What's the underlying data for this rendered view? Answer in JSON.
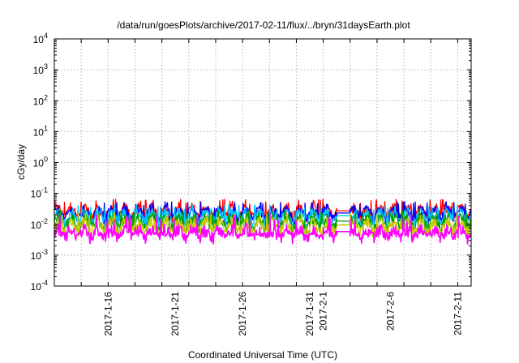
{
  "chart_data": {
    "type": "line",
    "title": "/data/run/goesPlots/archive/2017-02-11/flux/../bryn/31daysEarth.plot",
    "xlabel": "Coordinated Universal Time (UTC)",
    "ylabel": "cGy/day",
    "yscale": "log",
    "ylim": [
      0.0001,
      10000
    ],
    "y_ticks": [
      {
        "base": "10",
        "exp": "-4"
      },
      {
        "base": "10",
        "exp": "-3"
      },
      {
        "base": "10",
        "exp": "-2"
      },
      {
        "base": "10",
        "exp": "-1"
      },
      {
        "base": "10",
        "exp": "0"
      },
      {
        "base": "10",
        "exp": "1"
      },
      {
        "base": "10",
        "exp": "2"
      },
      {
        "base": "10",
        "exp": "3"
      },
      {
        "base": "10",
        "exp": "4"
      }
    ],
    "xlim": [
      "2017-01-12",
      "2017-02-12"
    ],
    "x_ticks": [
      "2017-1-16",
      "2017-1-21",
      "2017-1-26",
      "2017-1-31",
      "2017-2-1",
      "2017-2-6",
      "2017-2-11"
    ],
    "grid": true,
    "legend": "none",
    "series": [
      {
        "color": "#ff0000",
        "baseline": 0.026,
        "spike": 0.065
      },
      {
        "color": "#0000ff",
        "baseline": 0.022,
        "spike": 0.055
      },
      {
        "color": "#00c8ff",
        "baseline": 0.018,
        "spike": 0.045
      },
      {
        "color": "#00a000",
        "baseline": 0.012,
        "spike": 0.03
      },
      {
        "color": "#c8c800",
        "baseline": 0.009,
        "spike": 0.024
      },
      {
        "color": "#ff00ff",
        "baseline": 0.0055,
        "spike": 0.02
      }
    ],
    "data_gap": [
      "2017-02-02",
      "2017-02-03"
    ]
  }
}
